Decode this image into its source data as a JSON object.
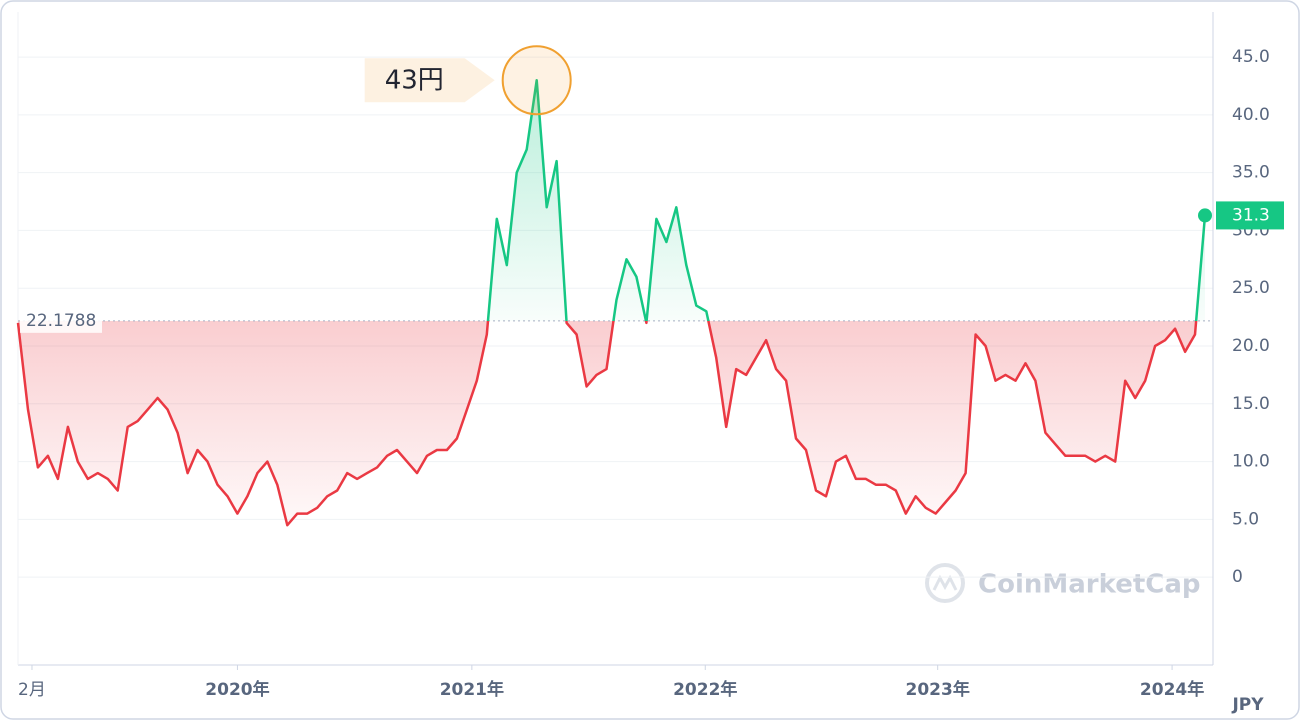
{
  "chart_data": {
    "type": "line",
    "values": [
      22,
      14.5,
      9.5,
      10.5,
      8.5,
      13,
      10,
      8.5,
      9,
      8.5,
      7.5,
      13,
      13.5,
      14.5,
      15.5,
      14.5,
      12.5,
      9,
      11,
      10,
      8,
      7,
      5.5,
      7,
      9,
      10,
      8,
      4.5,
      5.5,
      5.5,
      6,
      7,
      7.5,
      9,
      8.5,
      9,
      9.5,
      10.5,
      11,
      10,
      9,
      10.5,
      11,
      11,
      12,
      14.5,
      17,
      21,
      31,
      27,
      35,
      37,
      43,
      32,
      36,
      22,
      21,
      16.5,
      17.5,
      18,
      24,
      27.5,
      26,
      22,
      31,
      29,
      32,
      27,
      23.5,
      23,
      19,
      13,
      18,
      17.5,
      19,
      20.5,
      18,
      17,
      12,
      11,
      7.5,
      7,
      10,
      10.5,
      8.5,
      8.5,
      8,
      8,
      7.5,
      5.5,
      7,
      6,
      5.5,
      6.5,
      7.5,
      9,
      21,
      20,
      17,
      17.5,
      17,
      18.5,
      17,
      12.5,
      11.5,
      10.5,
      10.5,
      10.5,
      10,
      10.5,
      10,
      17,
      15.5,
      17,
      20,
      20.5,
      21.5,
      19.5,
      21,
      31.3
    ],
    "xlim": [
      0,
      119
    ],
    "xticks": [
      {
        "value": 1.4,
        "label": "2月"
      },
      {
        "value": 22,
        "label": "2020年"
      },
      {
        "value": 45.5,
        "label": "2021年"
      },
      {
        "value": 68.9,
        "label": "2022年"
      },
      {
        "value": 92.2,
        "label": "2023年"
      },
      {
        "value": 115.7,
        "label": "2024年"
      }
    ],
    "ylim": [
      -7.6,
      48.9
    ],
    "yticks": [
      0,
      {
        "value": 5,
        "label": "5.0"
      },
      {
        "value": 10,
        "label": "10.0"
      },
      {
        "value": 15,
        "label": "15.0"
      },
      {
        "value": 20,
        "label": "20.0"
      },
      {
        "value": 25,
        "label": "25.0"
      },
      {
        "value": 30,
        "label": "30.0"
      },
      {
        "value": 35,
        "label": "35.0"
      },
      {
        "value": 40,
        "label": "40.0"
      },
      {
        "value": 45,
        "label": "45.0"
      }
    ],
    "grid": true,
    "baseline": 22.1788,
    "up_color": "#16c784",
    "down_color": "#ea3943",
    "peak_annotation": "43円",
    "last_value_label": "31.3",
    "currency": "JPY",
    "watermark": "CoinMarketCap"
  }
}
